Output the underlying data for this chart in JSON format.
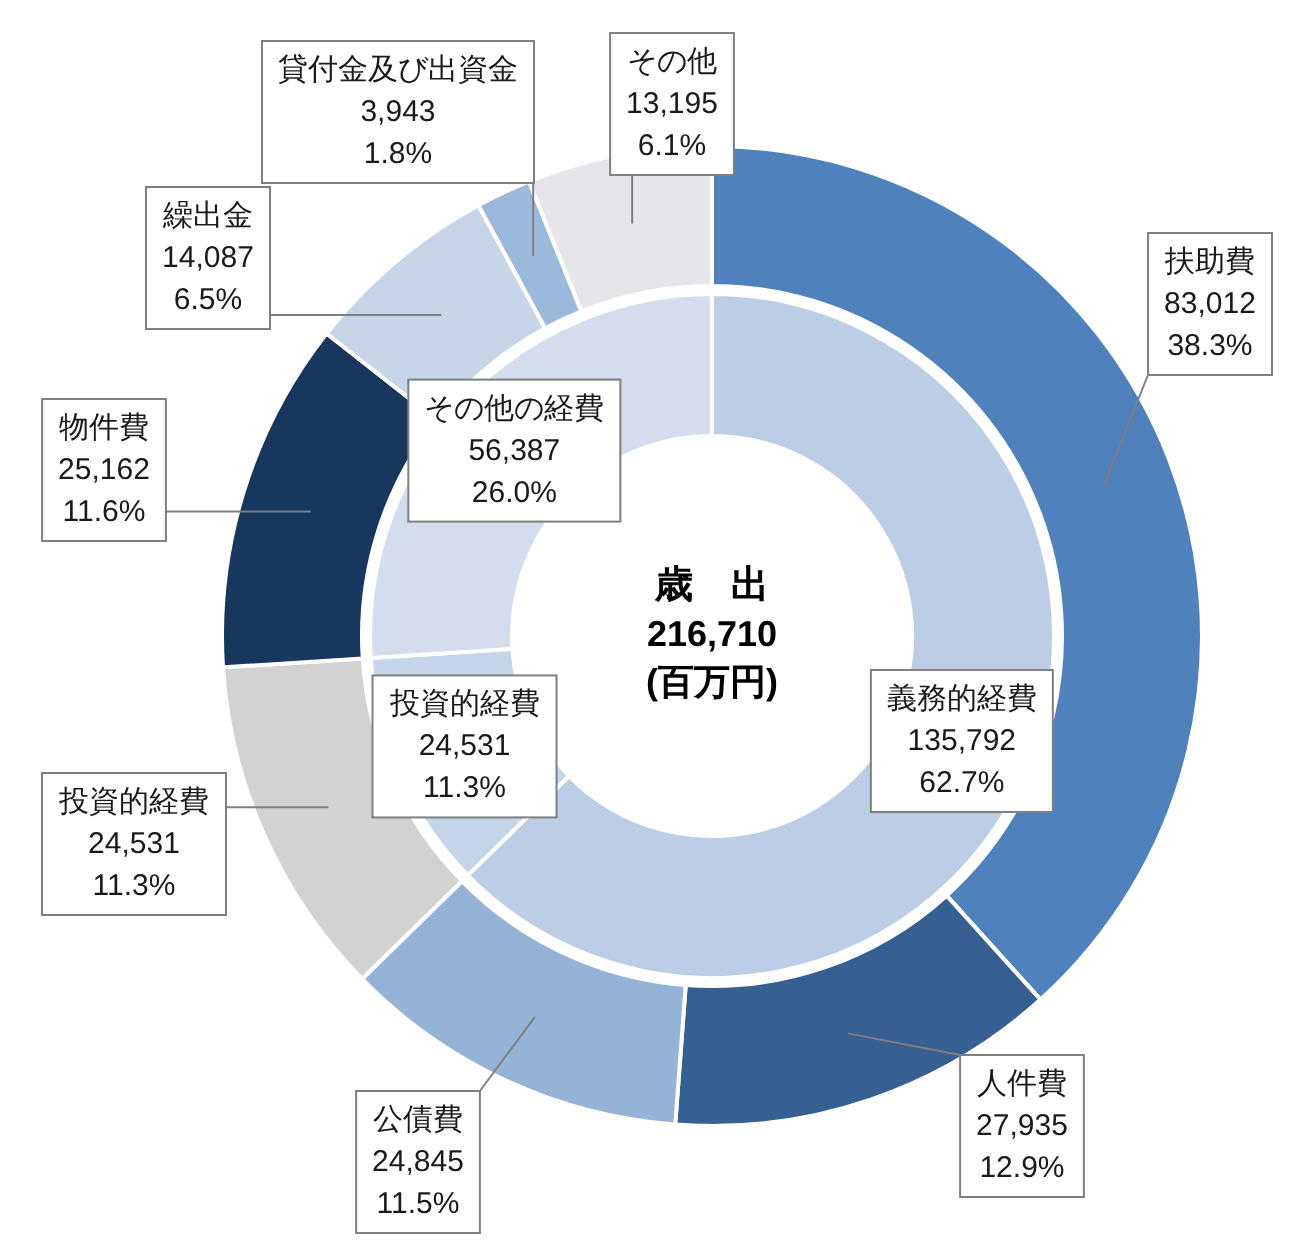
{
  "chart_data": [
    {
      "type": "donut",
      "categories": [
        "扶助費",
        "人件費",
        "公債費",
        "投資的経費",
        "物件費",
        "繰出金",
        "貸付金及び出資金",
        "その他"
      ],
      "values": [
        83012,
        27935,
        24845,
        24531,
        25162,
        14087,
        3943,
        13195
      ],
      "colors": [
        "#4f81bd",
        "#376092",
        "#95b3d7",
        "#d2d2d2",
        "#17375e",
        "#c6d5e8",
        "#9cb8db",
        "#e6e6ea"
      ],
      "value_labels": [
        "83,012\n38.3%",
        "27,935\n12.9%",
        "24,845\n11.5%",
        "24,531\n11.3%",
        "25,162\n11.6%",
        "14,087\n6.5%",
        "3,943\n1.8%",
        "13,195\n6.1%"
      ]
    },
    {
      "type": "donut",
      "title": "歳　出",
      "subtitle": "216,710\n(百万円)",
      "categories": [
        "義務的経費",
        "投資的経費",
        "その他の経費"
      ],
      "values": [
        135792,
        24531,
        56387
      ],
      "colors": [
        "#bccee5",
        "#c6d6ea",
        "#d3dded"
      ],
      "value_labels": [
        "135,792\n62.7%",
        "24,531\n11.3%",
        "56,387\n26.0%"
      ]
    }
  ]
}
